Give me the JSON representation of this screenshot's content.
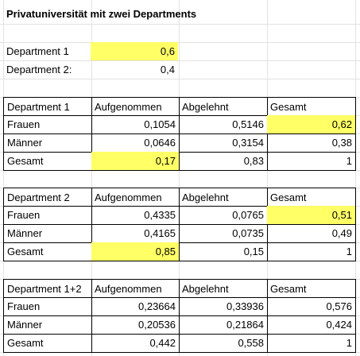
{
  "title": "Privatuniversität mit zwei Departments",
  "departments": [
    {
      "label": "Department 1",
      "value": "0,6",
      "highlight": true
    },
    {
      "label": "Department 2:",
      "value": "0,4",
      "highlight": false
    }
  ],
  "tables": [
    {
      "header": [
        "Department 1",
        "Aufgenommen",
        "Abgelehnt",
        "Gesamt"
      ],
      "rows": [
        {
          "label": "Frauen",
          "cells": [
            "0,1054",
            "0,5146",
            "0,62"
          ]
        },
        {
          "label": "Männer",
          "cells": [
            "0,0646",
            "0,3154",
            "0,38"
          ]
        },
        {
          "label": "Gesamt",
          "cells": [
            "0,17",
            "0,83",
            "1"
          ]
        }
      ]
    },
    {
      "header": [
        "Department 2",
        "Aufgenommen",
        "Abgelehnt",
        "Gesamt"
      ],
      "rows": [
        {
          "label": "Frauen",
          "cells": [
            "0,4335",
            "0,0765",
            "0,51"
          ]
        },
        {
          "label": "Männer",
          "cells": [
            "0,4165",
            "0,0735",
            "0,49"
          ]
        },
        {
          "label": "Gesamt",
          "cells": [
            "0,85",
            "0,15",
            "1"
          ]
        }
      ]
    },
    {
      "header": [
        "Department 1+2",
        "Aufgenommen",
        "Abgelehnt",
        "Gesamt"
      ],
      "rows": [
        {
          "label": "Frauen",
          "cells": [
            "0,23664",
            "0,33936",
            "0,576"
          ]
        },
        {
          "label": "Männer",
          "cells": [
            "0,20536",
            "0,21864",
            "0,424"
          ]
        },
        {
          "label": "Gesamt",
          "cells": [
            "0,442",
            "0,558",
            "1"
          ]
        }
      ]
    }
  ],
  "colors": {
    "highlight": "#ffff66",
    "gridline": "#e2e2e2",
    "border": "#000000"
  }
}
